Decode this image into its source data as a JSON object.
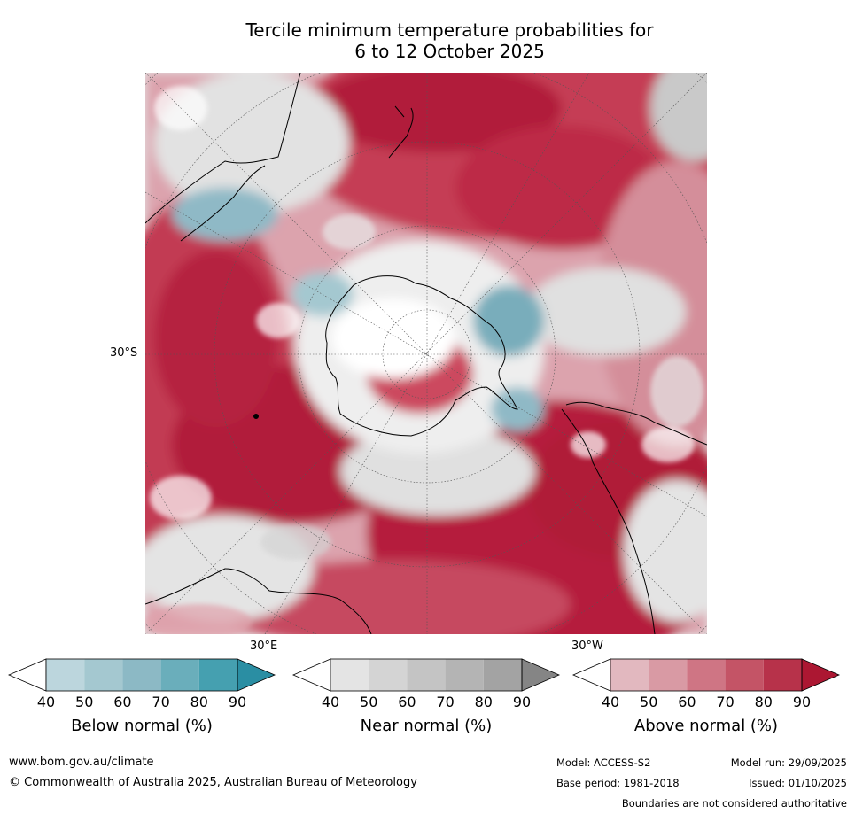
{
  "title_line1": "Tercile minimum temperature probabilities for",
  "title_line2": "6 to 12 October 2025",
  "map": {
    "lat_label": "30°S",
    "lon_label_east": "30°E",
    "lon_label_west": "30°W",
    "colors": {
      "above_dark": "#b0193a",
      "above_mid": "#cc4a5e",
      "above_light": "#e0a2ac",
      "below_mid": "#8fb9c6",
      "below_dark": "#4a9fb0",
      "near": "#d8d8d8",
      "land_outline": "#000000"
    }
  },
  "colorbars": [
    {
      "name": "below",
      "label": "Below normal (%)",
      "ticks": [
        "40",
        "50",
        "60",
        "70",
        "80",
        "90"
      ],
      "colors": [
        "#ffffff",
        "#bcd6dd",
        "#a4c8d0",
        "#8cb9c5",
        "#6aaebb",
        "#45a0b0",
        "#2a8ea3"
      ]
    },
    {
      "name": "near",
      "label": "Near normal (%)",
      "ticks": [
        "40",
        "50",
        "60",
        "70",
        "80",
        "90"
      ],
      "colors": [
        "#ffffff",
        "#e4e4e4",
        "#d4d4d4",
        "#c4c4c4",
        "#b4b4b4",
        "#a3a3a3",
        "#858585"
      ]
    },
    {
      "name": "above",
      "label": "Above normal (%)",
      "ticks": [
        "40",
        "50",
        "60",
        "70",
        "80",
        "90"
      ],
      "colors": [
        "#ffffff",
        "#e2b8bf",
        "#d99aa4",
        "#cf7584",
        "#c45466",
        "#b7324a",
        "#ac1732"
      ]
    }
  ],
  "footer": {
    "website": "www.bom.gov.au/climate",
    "copyright": "© Commonwealth of Australia 2025, Australian Bureau of Meteorology",
    "model": "Model: ACCESS-S2",
    "base_period": "Base period: 1981-2018",
    "model_run": "Model run: 29/09/2025",
    "issued": "Issued: 01/10/2025",
    "boundaries": "Boundaries are not considered authoritative"
  }
}
